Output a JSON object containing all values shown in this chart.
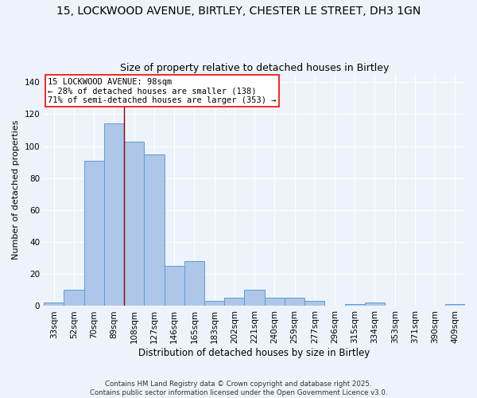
{
  "title1": "15, LOCKWOOD AVENUE, BIRTLEY, CHESTER LE STREET, DH3 1GN",
  "title2": "Size of property relative to detached houses in Birtley",
  "xlabel": "Distribution of detached houses by size in Birtley",
  "ylabel": "Number of detached properties",
  "categories": [
    "33sqm",
    "52sqm",
    "70sqm",
    "89sqm",
    "108sqm",
    "127sqm",
    "146sqm",
    "165sqm",
    "183sqm",
    "202sqm",
    "221sqm",
    "240sqm",
    "259sqm",
    "277sqm",
    "296sqm",
    "315sqm",
    "334sqm",
    "353sqm",
    "371sqm",
    "390sqm",
    "409sqm"
  ],
  "values": [
    2,
    10,
    91,
    114,
    103,
    95,
    25,
    28,
    3,
    5,
    10,
    5,
    5,
    3,
    0,
    1,
    2,
    0,
    0,
    0,
    1
  ],
  "bar_color": "#aec6e8",
  "bar_edge_color": "#5a9fd4",
  "red_line_x": 3.5,
  "annotation_text": "15 LOCKWOOD AVENUE: 98sqm\n← 28% of detached houses are smaller (138)\n71% of semi-detached houses are larger (353) →",
  "annotation_box_color": "white",
  "annotation_box_edge_color": "red",
  "background_color": "#eef3fb",
  "grid_color": "white",
  "ylim": [
    0,
    145
  ],
  "yticks": [
    0,
    20,
    40,
    60,
    80,
    100,
    120,
    140
  ],
  "title1_fontsize": 10,
  "title2_fontsize": 9,
  "xlabel_fontsize": 8.5,
  "ylabel_fontsize": 8,
  "annotation_fontsize": 7.5,
  "tick_fontsize": 7.5,
  "footer_line1": "Contains HM Land Registry data © Crown copyright and database right 2025.",
  "footer_line2": "Contains public sector information licensed under the Open Government Licence v3.0."
}
